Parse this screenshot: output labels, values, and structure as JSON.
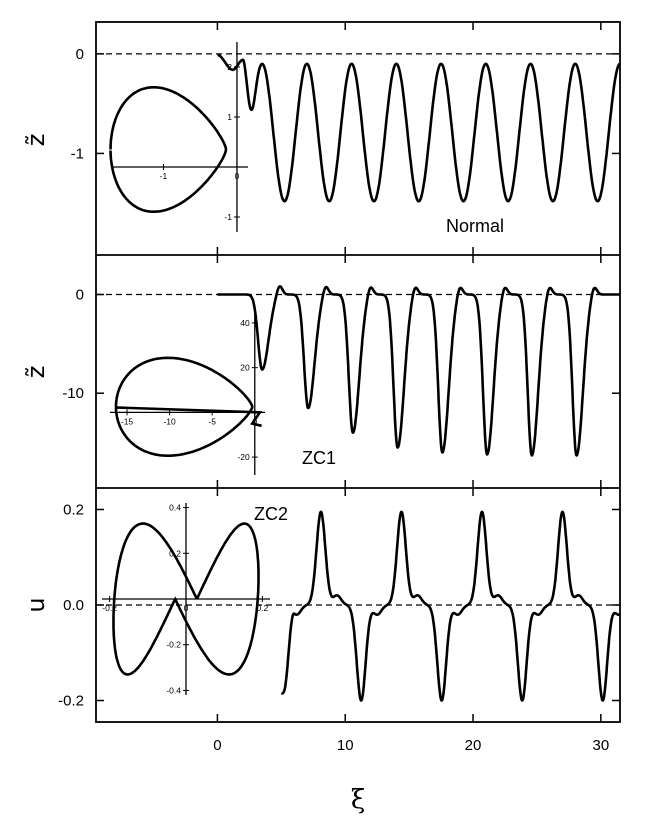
{
  "chart_data": [
    {
      "type": "line",
      "name": "panel-normal",
      "label": "Normal",
      "ylabel": "z̃",
      "xlim": [
        -9.5,
        31.5
      ],
      "ylim": [
        -2.02,
        0.32
      ],
      "yticks": [
        0,
        -1
      ],
      "ytick_labels": [
        "0",
        "-1"
      ],
      "reference_line_y": 0,
      "series": {
        "x_start": 0,
        "x_end": 31.5,
        "period": 3.5,
        "first_peak_x": 3.5,
        "peak": -0.1,
        "trough": -1.48,
        "transient": [
          [
            0,
            -0.01
          ],
          [
            1.2,
            -0.16
          ],
          [
            2.0,
            -0.06
          ]
        ]
      },
      "inset": {
        "type": "phase-portrait",
        "xlim": [
          -1.7,
          0.15
        ],
        "ylim": [
          -1.3,
          2.5
        ],
        "xticks": [
          -1,
          0
        ],
        "xtick_labels": [
          "-1",
          "0"
        ],
        "yticks": [
          2,
          1,
          -1
        ],
        "ytick_labels": [
          "2",
          "1",
          "-1"
        ],
        "shape": "teardrop",
        "extent": {
          "xmin": -1.62,
          "xmax": -0.05,
          "ymin": -1.0,
          "ymax": 1.7
        }
      }
    },
    {
      "type": "line",
      "name": "panel-zc1",
      "label": "ZC1",
      "ylabel": "z̃",
      "xlim": [
        -9.5,
        31.5
      ],
      "ylim": [
        -19.6,
        4.0
      ],
      "yticks": [
        0,
        -10
      ],
      "ytick_labels": [
        "0",
        "-10"
      ],
      "reference_line_y": 0,
      "series": {
        "x_start": 0,
        "x_end": 31.5,
        "troughs": [
          [
            3.5,
            -7.6
          ],
          [
            7.1,
            -11.5
          ],
          [
            10.6,
            -14.0
          ],
          [
            14.1,
            -15.5
          ],
          [
            17.6,
            -16.0
          ],
          [
            21.1,
            -16.2
          ],
          [
            24.6,
            -16.3
          ],
          [
            28.1,
            -16.3
          ]
        ],
        "peak_overshoot": 1.0
      },
      "inset": {
        "type": "phase-portrait",
        "xlim": [
          -17,
          1.2
        ],
        "ylim": [
          -28,
          48
        ],
        "xticks": [
          -15,
          -10,
          -5,
          0
        ],
        "xtick_labels": [
          "-15",
          "-10",
          "-5",
          "0"
        ],
        "yticks": [
          40,
          20,
          -20
        ],
        "ytick_labels": [
          "40",
          "20",
          "-20"
        ],
        "shape": "egg",
        "extent": {
          "xmin": -16.3,
          "xmax": 0.8,
          "ymin": -22,
          "ymax": 27
        }
      }
    },
    {
      "type": "line",
      "name": "panel-zc2",
      "label": "ZC2",
      "ylabel": "u",
      "xlim": [
        -9.5,
        31.5
      ],
      "ylim": [
        -0.245,
        0.245
      ],
      "yticks": [
        0.2,
        0.0,
        -0.2
      ],
      "ytick_labels": [
        "0.2",
        "0.0",
        "-0.2"
      ],
      "reference_line_y": 0,
      "series": {
        "x_start": 5.0,
        "x_end": 31.5,
        "period": 6.3,
        "first_peak_x": 8.1,
        "peak": 0.195,
        "trough": -0.2,
        "shoulder": 0.02
      },
      "inset": {
        "type": "phase-portrait",
        "xlim": [
          -0.22,
          0.22
        ],
        "ylim": [
          -0.42,
          0.42
        ],
        "xticks": [
          -0.2,
          0,
          0.2
        ],
        "xtick_labels": [
          "-0.2",
          "0",
          "0.2"
        ],
        "yticks": [
          0.4,
          0.2,
          -0.2,
          -0.4
        ],
        "ytick_labels": [
          "0.4",
          "0.2",
          "-0.2",
          "-0.4"
        ],
        "shape": "figure-eight",
        "extent": {
          "xmin": -0.2,
          "xmax": 0.2,
          "ymin": -0.33,
          "ymax": 0.33
        }
      }
    }
  ],
  "x_axis": {
    "label": "ξ",
    "ticks": [
      0,
      10,
      20,
      30
    ],
    "tick_labels": [
      "0",
      "10",
      "20",
      "30"
    ]
  }
}
